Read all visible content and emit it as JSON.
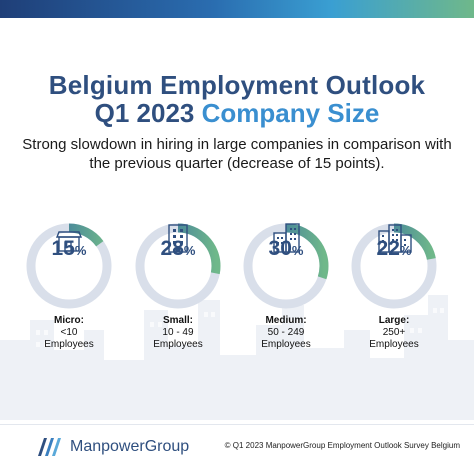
{
  "title": {
    "line1": "Belgium Employment Outlook",
    "line2_primary": "Q1 2023",
    "line2_accent": "Company Size"
  },
  "subtitle": "Strong slowdown in hiring in large companies in comparison with the previous quarter (decrease of 15 points).",
  "colors": {
    "title": "#2f4f7f",
    "accent": "#3a8fd0",
    "ring_track": "#d9dfea",
    "ring_fill_start": "#2a5fa8",
    "ring_fill_end": "#6fb88a"
  },
  "segments": [
    {
      "percent_value": 15,
      "number": "15",
      "symbol": "%",
      "title": "Micro:",
      "range": "<10",
      "unit": "Employees",
      "icon": "small-shop-icon"
    },
    {
      "percent_value": 28,
      "number": "28",
      "symbol": "%",
      "title": "Small:",
      "range": "10 - 49",
      "unit": "Employees",
      "icon": "office-building-icon"
    },
    {
      "percent_value": 30,
      "number": "30",
      "symbol": "%",
      "title": "Medium:",
      "range": "50 - 249",
      "unit": "Employees",
      "icon": "two-towers-icon"
    },
    {
      "percent_value": 22,
      "number": "22",
      "symbol": "%",
      "title": "Large:",
      "range": "250+",
      "unit": "Employees",
      "icon": "city-block-icon"
    }
  ],
  "footer": {
    "logo_text": "ManpowerGroup",
    "copyright": "© Q1 2023 ManpowerGroup Employment Outlook Survey Belgium"
  }
}
